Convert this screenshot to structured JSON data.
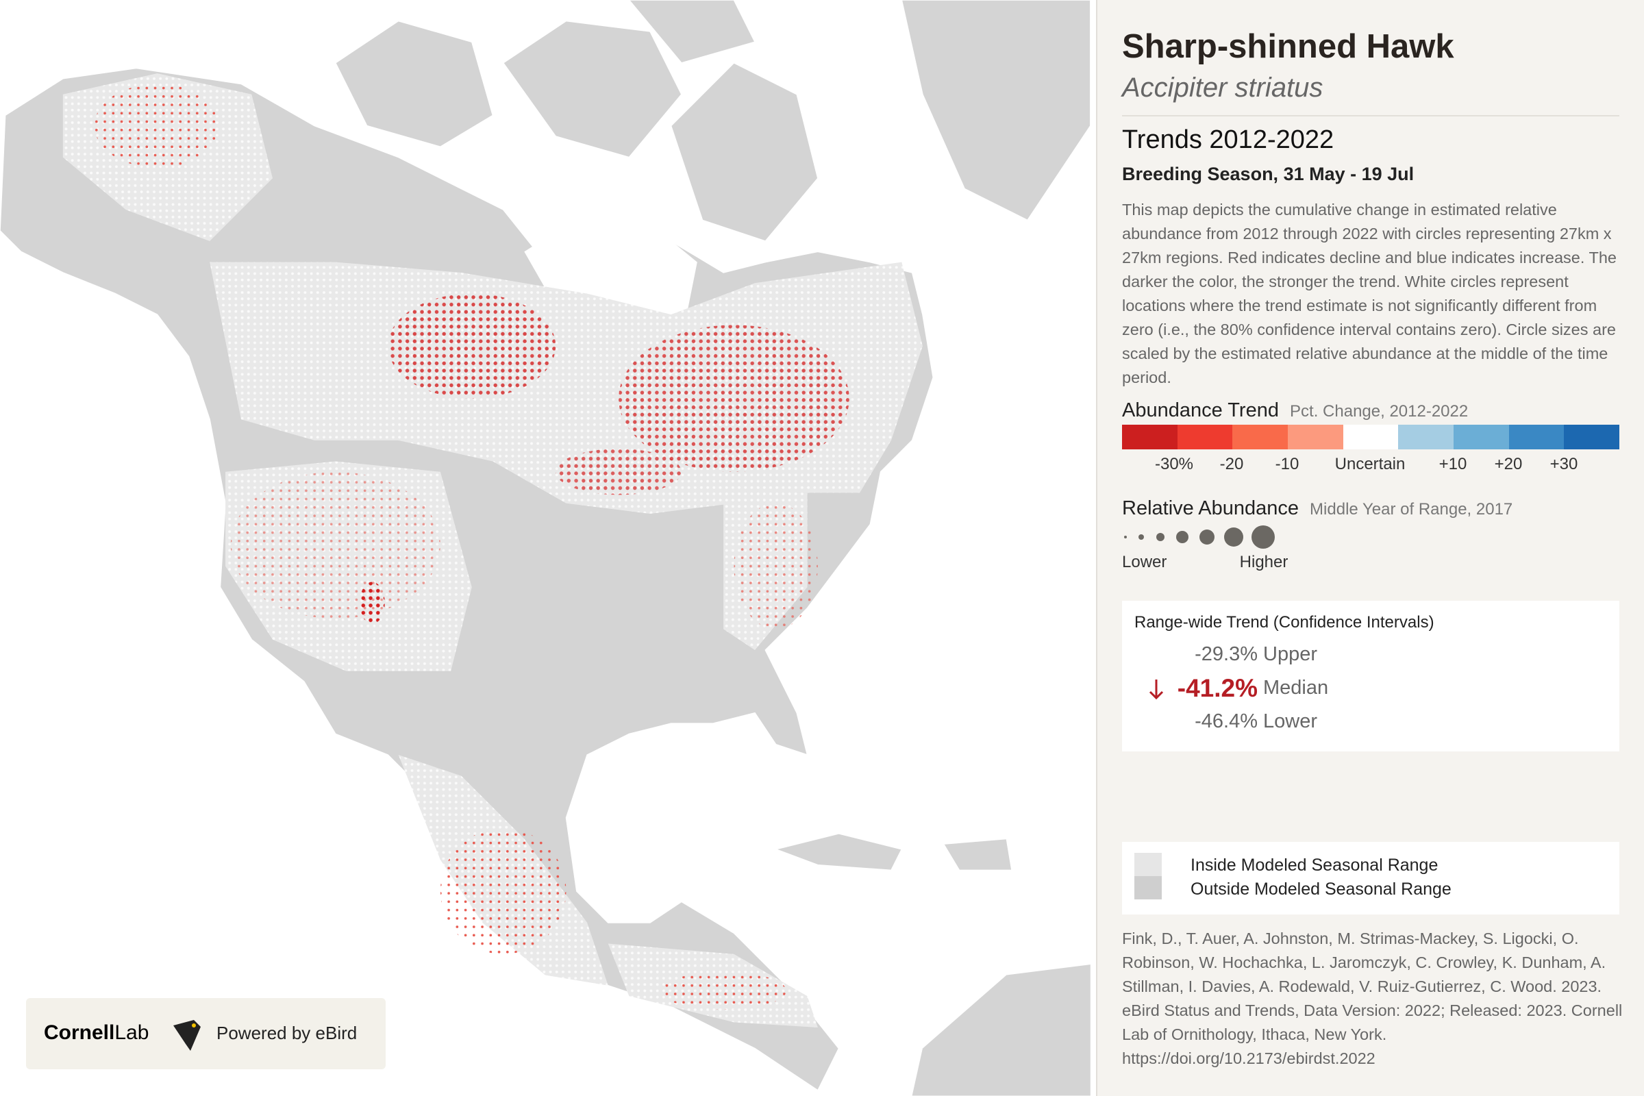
{
  "header": {
    "title": "Sharp-shinned Hawk",
    "subtitle": "Accipiter striatus"
  },
  "section": {
    "title": "Trends 2012-2022",
    "season": "Breeding Season, 31 May - 19 Jul",
    "description": "This map depicts the cumulative change in estimated relative abundance from 2012 through 2022 with circles representing 27km x 27km regions. Red indicates decline and blue indicates increase. The darker the color, the stronger the trend. White circles represent locations where the trend estimate is not significantly different from zero (i.e., the 80% confidence interval contains zero). Circle sizes are scaled by the estimated relative abundance at the middle of the time period."
  },
  "trend_legend": {
    "title": "Abundance Trend",
    "subtitle": "Pct. Change, 2012-2022",
    "colors": [
      "#cc1f1f",
      "#ee3b2f",
      "#f96a4a",
      "#fc9a7e",
      "#ffffff",
      "#a5cde3",
      "#6baed6",
      "#3a88c4",
      "#1c68b0"
    ],
    "labels": [
      "-30%",
      "-20",
      "-10",
      "Uncertain",
      "+10",
      "+20",
      "+30"
    ]
  },
  "abundance_legend": {
    "title": "Relative Abundance",
    "subtitle": "Middle Year of Range, 2017",
    "low": "Lower",
    "high": "Higher"
  },
  "range_trend": {
    "title": "Range-wide Trend (Confidence Intervals)",
    "rows": [
      {
        "value": "-29.3%",
        "label": "Upper"
      },
      {
        "value": "-41.2%",
        "label": "Median"
      },
      {
        "value": "-46.4%",
        "label": "Lower"
      }
    ]
  },
  "range_legend": [
    "Inside Modeled Seasonal Range",
    "Outside Modeled Seasonal Range"
  ],
  "citation": "Fink, D., T. Auer, A. Johnston, M. Strimas-Mackey, S. Ligocki, O. Robinson, W. Hochachka, L. Jaromczyk, C. Crowley, K. Dunham, A. Stillman, I. Davies, A. Rodewald, V. Ruiz-Gutierrez, C. Wood. 2023. eBird Status and Trends, Data Version: 2022; Released: 2023. Cornell Lab of Ornithology, Ithaca, New York. https://doi.org/10.2173/ebirdst.2022",
  "logo": {
    "brand": "Cornell",
    "brand_suffix": "Lab",
    "powered": "Powered by eBird"
  }
}
